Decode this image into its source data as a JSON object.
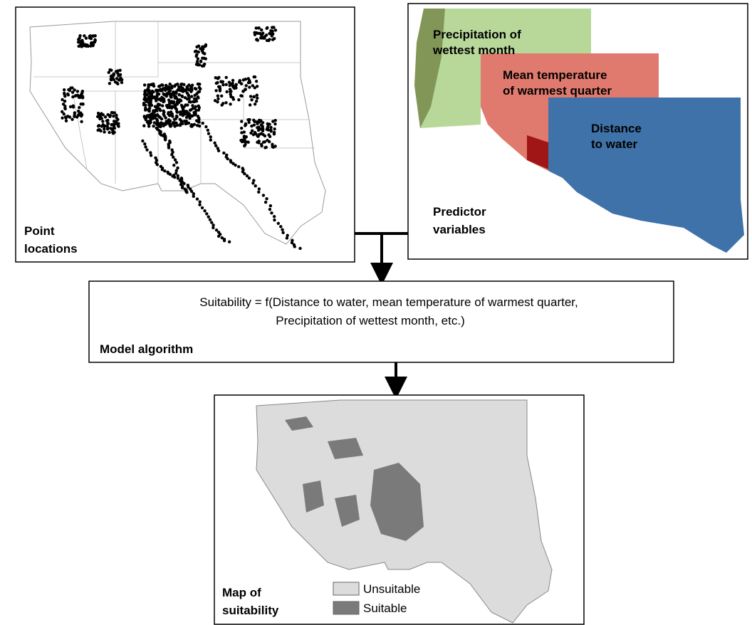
{
  "point_locations": {
    "label": [
      "Point",
      "locations"
    ]
  },
  "predictor_variables": {
    "label": [
      "Predictor",
      "variables"
    ],
    "layers": [
      {
        "label": [
          "Precipitation of",
          "wettest month"
        ]
      },
      {
        "label": [
          "Mean temperature",
          "of warmest quarter"
        ]
      },
      {
        "label": [
          "Distance",
          "to water"
        ]
      }
    ]
  },
  "model_algorithm": {
    "formula": [
      "Suitability = f(Distance to water, mean temperature of warmest quarter,",
      "Precipitation of wettest month, etc.)"
    ],
    "label": "Model algorithm"
  },
  "suitability_map": {
    "label": [
      "Map of",
      "suitability"
    ],
    "legend": [
      "Unsuitable",
      "Suitable"
    ]
  }
}
